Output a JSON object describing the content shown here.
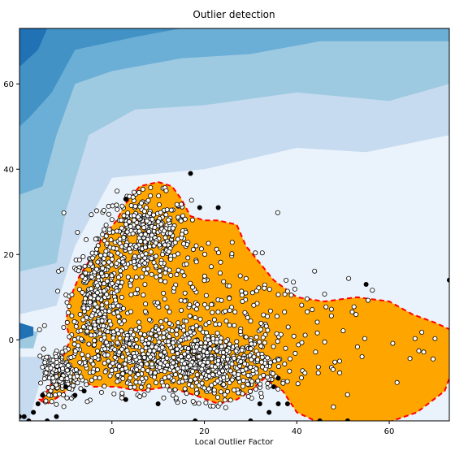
{
  "chart_data": {
    "type": "scatter",
    "title": "Outlier detection",
    "xlabel": "Local Outlier Factor",
    "ylabel": "",
    "xlim": [
      -20,
      73
    ],
    "ylim": [
      -19,
      73
    ],
    "xticks": [
      0,
      20,
      40,
      60
    ],
    "yticks": [
      0,
      20,
      40,
      60
    ],
    "grid": false,
    "legend": "none",
    "colors": {
      "inlier_region": "#ffa500",
      "decision_boundary": "#ff0000",
      "inlier_point_fill": "#ffffff",
      "point_edge": "#000000",
      "outlier_point": "#000000",
      "contour_levels": [
        "#eaf2fb",
        "#c6dbef",
        "#9ecae1",
        "#6baed6",
        "#4292c6",
        "#2171b5"
      ]
    },
    "inlier_cluster": {
      "description_points_count_approx": 2000,
      "dense_core_x_range": [
        -15,
        38
      ],
      "dense_core_y_range": [
        -15,
        35
      ]
    },
    "outliers": [
      {
        "x": 17,
        "y": 39
      },
      {
        "x": 19,
        "y": 31
      },
      {
        "x": 23,
        "y": 31
      },
      {
        "x": 3,
        "y": 33
      },
      {
        "x": 55,
        "y": 13
      },
      {
        "x": 73,
        "y": 14
      },
      {
        "x": 36,
        "y": -9
      },
      {
        "x": 35,
        "y": -11
      },
      {
        "x": 38,
        "y": -15
      },
      {
        "x": 36,
        "y": -15
      },
      {
        "x": 32,
        "y": -15
      },
      {
        "x": 34,
        "y": -17
      },
      {
        "x": 30,
        "y": -19
      },
      {
        "x": 18,
        "y": -19
      },
      {
        "x": 10,
        "y": -15
      },
      {
        "x": 3,
        "y": -14
      },
      {
        "x": -16,
        "y": -15
      },
      {
        "x": -17,
        "y": -17
      },
      {
        "x": -18,
        "y": -19
      },
      {
        "x": -19,
        "y": -18
      },
      {
        "x": -20,
        "y": -18
      },
      {
        "x": -14,
        "y": -19
      },
      {
        "x": -12,
        "y": -18
      },
      {
        "x": -10,
        "y": -11
      },
      {
        "x": -6,
        "y": -12
      },
      {
        "x": -8,
        "y": -13
      },
      {
        "x": 45,
        "y": -19
      },
      {
        "x": 51,
        "y": -19
      },
      {
        "x": -15,
        "y": -13
      }
    ]
  }
}
